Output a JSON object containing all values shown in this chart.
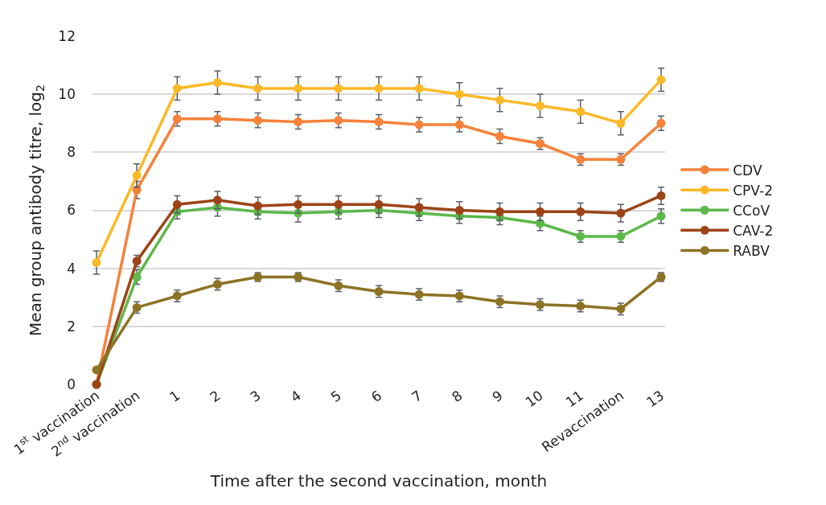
{
  "chart_data": {
    "type": "line",
    "xlabel": "Time after the second vaccination, month",
    "ylabel": "Mean group antibody titre, log$_{2}$",
    "categories": [
      "1$^{st}$ vaccination",
      "2$^{nd}$ vaccination",
      "1",
      "2",
      "3",
      "4",
      "5",
      "6",
      "7",
      "8",
      "9",
      "10",
      "11",
      "Revaccination",
      "13"
    ],
    "ylim": [
      0,
      12
    ],
    "yticks": [
      0,
      2,
      4,
      6,
      8,
      10,
      12
    ],
    "grid": "y",
    "legend": "right",
    "marker": "circle",
    "line_style": "solid",
    "series": [
      {
        "name": "CDV",
        "color": "#f4823a",
        "values": [
          0,
          6.7,
          9.15,
          9.15,
          9.1,
          9.05,
          9.1,
          9.05,
          8.95,
          8.95,
          8.55,
          8.3,
          7.75,
          7.75,
          9.0
        ],
        "errors": [
          null,
          0.3,
          0.25,
          0.25,
          0.25,
          0.25,
          0.25,
          0.25,
          0.25,
          0.25,
          0.25,
          0.2,
          0.2,
          0.2,
          0.25
        ]
      },
      {
        "name": "CPV-2",
        "color": "#fbb928",
        "values": [
          4.2,
          7.2,
          10.2,
          10.4,
          10.2,
          10.2,
          10.2,
          10.2,
          10.2,
          10.0,
          9.8,
          9.6,
          9.4,
          9.0,
          10.5
        ],
        "errors": [
          0.4,
          0.4,
          0.4,
          0.4,
          0.4,
          0.4,
          0.4,
          0.4,
          0.4,
          0.4,
          0.4,
          0.4,
          0.4,
          0.4,
          0.4
        ]
      },
      {
        "name": "CCoV",
        "color": "#5cb84a",
        "values": [
          0,
          3.7,
          5.95,
          6.1,
          5.95,
          5.9,
          5.95,
          6.0,
          5.9,
          5.8,
          5.75,
          5.55,
          5.1,
          5.1,
          5.8
        ],
        "errors": [
          null,
          0.25,
          0.25,
          0.3,
          0.25,
          0.3,
          0.25,
          0.25,
          0.25,
          0.25,
          0.25,
          0.25,
          0.2,
          0.2,
          0.25
        ]
      },
      {
        "name": "CAV-2",
        "color": "#9c4418",
        "values": [
          0,
          4.25,
          6.2,
          6.35,
          6.15,
          6.2,
          6.2,
          6.2,
          6.1,
          6.0,
          5.95,
          5.95,
          5.95,
          5.9,
          6.5
        ],
        "errors": [
          null,
          0.2,
          0.3,
          0.3,
          0.3,
          0.3,
          0.3,
          0.3,
          0.3,
          0.3,
          0.3,
          0.3,
          0.3,
          0.3,
          0.3
        ]
      },
      {
        "name": "RABV",
        "color": "#8c7325",
        "values": [
          0.5,
          2.65,
          3.05,
          3.45,
          3.7,
          3.7,
          3.4,
          3.2,
          3.1,
          3.05,
          2.85,
          2.75,
          2.7,
          2.6,
          3.7
        ],
        "errors": [
          null,
          0.2,
          0.2,
          0.2,
          0.15,
          0.15,
          0.2,
          0.2,
          0.2,
          0.2,
          0.2,
          0.2,
          0.2,
          0.2,
          0.15
        ]
      }
    ]
  }
}
